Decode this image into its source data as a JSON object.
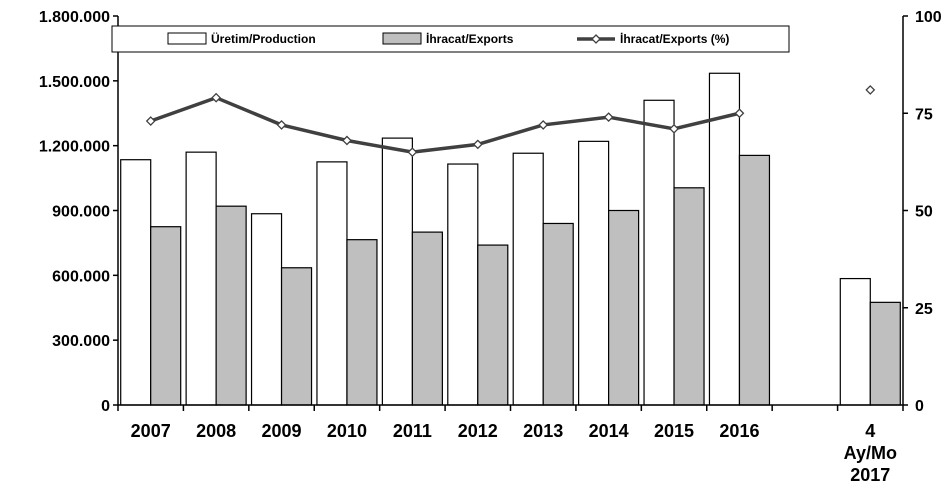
{
  "chart_data": {
    "type": "bar",
    "categories": [
      "2007",
      "2008",
      "2009",
      "2010",
      "2011",
      "2012",
      "2013",
      "2014",
      "2015",
      "2016",
      "",
      "4|Ay/Mo|2017"
    ],
    "series": [
      {
        "name": "Üretim/Production",
        "kind": "bar",
        "axis": "left",
        "color": "#ffffff",
        "values": [
          1135000,
          1170000,
          885000,
          1125000,
          1235000,
          1115000,
          1165000,
          1220000,
          1410000,
          1535000,
          null,
          585000
        ]
      },
      {
        "name": "İhracat/Exports",
        "kind": "bar",
        "axis": "left",
        "color": "#bfbfbf",
        "values": [
          825000,
          920000,
          635000,
          765000,
          800000,
          740000,
          840000,
          900000,
          1005000,
          1155000,
          null,
          475000
        ]
      },
      {
        "name": "İhracat/Exports (%)",
        "kind": "line",
        "axis": "right",
        "color": "#404040",
        "values": [
          73,
          79,
          72,
          68,
          65,
          67,
          72,
          74,
          71,
          75,
          null,
          81
        ]
      }
    ],
    "y_left": {
      "min": 0,
      "max": 1800000,
      "ticks": [
        "0",
        "300.000",
        "600.000",
        "900.000",
        "1.200.000",
        "1.500.000",
        "1.800.000"
      ]
    },
    "y_right": {
      "min": 0,
      "max": 100,
      "ticks": [
        "0",
        "25",
        "50",
        "75",
        "100"
      ]
    },
    "legend_position": "top",
    "grid": false
  }
}
